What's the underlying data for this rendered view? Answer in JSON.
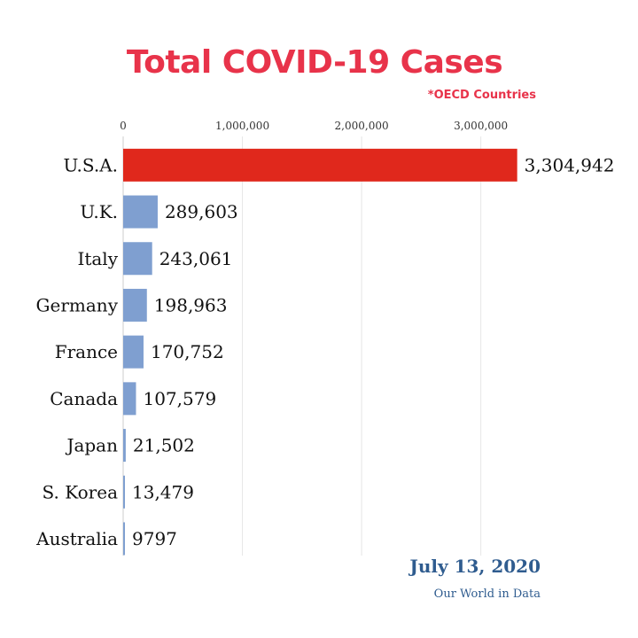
{
  "chart_data": {
    "type": "bar",
    "orientation": "horizontal",
    "title": "Total COVID-19 Cases",
    "subtitle": "*OECD Countries",
    "categories": [
      "U.S.A.",
      "U.K.",
      "Italy",
      "Germany",
      "France",
      "Canada",
      "Japan",
      "S. Korea",
      "Australia"
    ],
    "values": [
      3304942,
      289603,
      243061,
      198963,
      170752,
      107579,
      21502,
      13479,
      9797
    ],
    "value_labels": [
      "3,304,942",
      "289,603",
      "243,061",
      "198,963",
      "170,752",
      "107,579",
      "21,502",
      "13,479",
      "9797"
    ],
    "xticks": [
      0,
      1000000,
      2000000,
      3000000
    ],
    "xtick_labels": [
      "0",
      "1,000,000",
      "2,000,000",
      "3,000,000"
    ],
    "xlim": [
      0,
      3300000
    ],
    "grid": true,
    "colors": {
      "highlight": "#e0281c",
      "default": "#7f9fd0",
      "title": "#e8334a",
      "footer": "#2f5c8f"
    }
  },
  "footer": {
    "date": "July 13, 2020",
    "source": "Our World in Data"
  }
}
